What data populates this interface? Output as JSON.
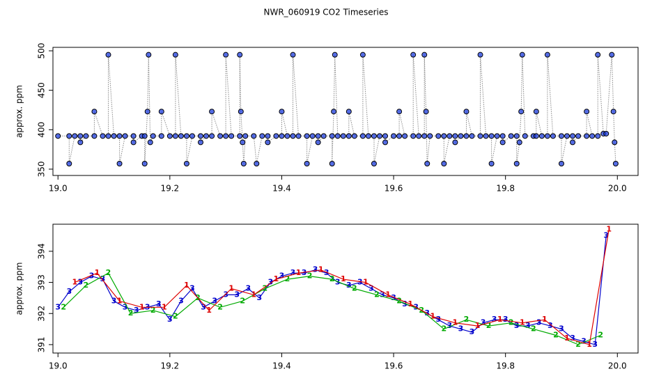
{
  "chart_data": [
    {
      "type": "scatter",
      "title": "NWR_060919  CO2 Timeseries",
      "ylabel": "approx. ppm",
      "xlim": [
        18.991,
        20.037
      ],
      "ylim": [
        342,
        504.4
      ],
      "xticks": [
        {
          "value": 19,
          "label": "19.0"
        },
        19.2,
        19.4,
        19.6,
        19.8,
        {
          "value": 20,
          "label": "20.0"
        }
      ],
      "yticks": [
        350,
        400,
        450,
        500
      ],
      "line_color": "#888888",
      "series": [
        {
          "color": "#1f3fe0",
          "x": [
            19.0,
            19.02,
            19.02,
            19.03,
            19.04,
            19.04,
            19.05,
            19.065,
            19.065,
            19.08,
            19.09,
            19.09,
            19.1,
            19.11,
            19.11,
            19.12,
            19.135,
            19.135,
            19.15,
            19.155,
            19.155,
            19.16,
            19.162,
            19.165,
            19.17,
            19.185,
            19.185,
            19.2,
            19.21,
            19.21,
            19.22,
            19.23,
            19.23,
            19.24,
            19.255,
            19.255,
            19.265,
            19.275,
            19.275,
            19.29,
            19.3,
            19.3,
            19.31,
            19.325,
            19.325,
            19.327,
            19.33,
            19.332,
            19.335,
            19.35,
            19.355,
            19.365,
            19.375,
            19.375,
            19.39,
            19.4,
            19.4,
            19.41,
            19.42,
            19.42,
            19.43,
            19.445,
            19.445,
            19.455,
            19.465,
            19.465,
            19.475,
            19.49,
            19.49,
            19.493,
            19.495,
            19.5,
            19.51,
            19.52,
            19.52,
            19.53,
            19.545,
            19.545,
            19.555,
            19.565,
            19.565,
            19.575,
            19.585,
            19.585,
            19.6,
            19.61,
            19.61,
            19.62,
            19.635,
            19.635,
            19.645,
            19.655,
            19.655,
            19.658,
            19.66,
            19.665,
            19.68,
            19.69,
            19.69,
            19.7,
            19.71,
            19.71,
            19.72,
            19.73,
            19.73,
            19.74,
            19.755,
            19.755,
            19.765,
            19.775,
            19.775,
            19.785,
            19.795,
            19.795,
            19.81,
            19.82,
            19.82,
            19.825,
            19.828,
            19.83,
            19.835,
            19.85,
            19.855,
            19.855,
            19.865,
            19.875,
            19.875,
            19.885,
            19.9,
            19.9,
            19.91,
            19.92,
            19.92,
            19.93,
            19.945,
            19.945,
            19.955,
            19.965,
            19.965,
            19.975,
            19.98,
            19.99,
            19.993,
            19.995,
            19.997
          ],
          "values": [
            392,
            392,
            357,
            392,
            392,
            384,
            392,
            392,
            423,
            392,
            392,
            495,
            392,
            392,
            357,
            392,
            392,
            384,
            392,
            392,
            357,
            423,
            495,
            384,
            392,
            392,
            423,
            392,
            392,
            495,
            392,
            392,
            357,
            392,
            392,
            384,
            392,
            392,
            423,
            392,
            392,
            495,
            392,
            392,
            495,
            423,
            384,
            357,
            392,
            392,
            357,
            392,
            392,
            384,
            392,
            392,
            423,
            392,
            392,
            495,
            392,
            392,
            357,
            392,
            392,
            384,
            392,
            392,
            357,
            423,
            495,
            392,
            392,
            392,
            423,
            392,
            392,
            495,
            392,
            392,
            357,
            392,
            392,
            384,
            392,
            392,
            423,
            392,
            392,
            495,
            392,
            392,
            495,
            423,
            357,
            392,
            392,
            392,
            357,
            392,
            392,
            384,
            392,
            392,
            423,
            392,
            392,
            495,
            392,
            392,
            357,
            392,
            392,
            384,
            392,
            392,
            357,
            384,
            423,
            495,
            392,
            392,
            392,
            423,
            392,
            392,
            495,
            392,
            392,
            357,
            392,
            392,
            384,
            392,
            392,
            423,
            392,
            392,
            495,
            395,
            395,
            495,
            423,
            384,
            357
          ]
        }
      ]
    },
    {
      "type": "line",
      "ylabel": "approx. ppm",
      "xlim": [
        18.991,
        20.037
      ],
      "ylim": [
        390.73,
        394.87
      ],
      "xticks": [
        {
          "value": 19,
          "label": "19.0"
        },
        19.2,
        19.4,
        19.6,
        19.8,
        {
          "value": 20,
          "label": "20.0"
        }
      ],
      "yticks": [
        391,
        392,
        393,
        394
      ],
      "series": [
        {
          "name": "3",
          "color": "#0000cc",
          "x": [
            19.0,
            19.02,
            19.04,
            19.06,
            19.08,
            19.1,
            19.12,
            19.14,
            19.16,
            19.18,
            19.2,
            19.22,
            19.24,
            19.26,
            19.28,
            19.3,
            19.32,
            19.34,
            19.36,
            19.38,
            19.4,
            19.42,
            19.44,
            19.46,
            19.48,
            19.5,
            19.52,
            19.54,
            19.56,
            19.58,
            19.6,
            19.62,
            19.64,
            19.66,
            19.68,
            19.7,
            19.72,
            19.74,
            19.76,
            19.78,
            19.8,
            19.82,
            19.84,
            19.86,
            19.88,
            19.9,
            19.92,
            19.94,
            19.96,
            19.98
          ],
          "values": [
            392.2,
            392.7,
            393.0,
            393.2,
            393.1,
            392.4,
            392.2,
            392.1,
            392.2,
            392.3,
            391.8,
            392.4,
            392.8,
            392.2,
            392.4,
            392.6,
            392.6,
            392.8,
            392.5,
            393.0,
            393.2,
            393.3,
            393.3,
            393.4,
            393.3,
            393.0,
            392.9,
            393.0,
            392.8,
            392.6,
            392.5,
            392.3,
            392.2,
            392.0,
            391.8,
            391.6,
            391.5,
            391.4,
            391.7,
            391.8,
            391.8,
            391.6,
            391.6,
            391.7,
            391.6,
            391.5,
            391.2,
            391.1,
            391.0,
            394.5
          ]
        },
        {
          "name": "2",
          "color": "#00aa00",
          "x": [
            19.01,
            19.05,
            19.09,
            19.13,
            19.17,
            19.21,
            19.25,
            19.29,
            19.33,
            19.37,
            19.41,
            19.45,
            19.49,
            19.53,
            19.57,
            19.61,
            19.65,
            19.69,
            19.73,
            19.77,
            19.81,
            19.85,
            19.89,
            19.93,
            19.97
          ],
          "values": [
            392.2,
            392.9,
            393.3,
            392.0,
            392.1,
            391.9,
            392.5,
            392.2,
            392.4,
            392.8,
            393.1,
            393.2,
            393.1,
            392.8,
            392.6,
            392.4,
            392.1,
            391.5,
            391.8,
            391.6,
            391.7,
            391.5,
            391.3,
            391.0,
            391.3
          ]
        },
        {
          "name": "1",
          "color": "#dd0000",
          "x": [
            19.03,
            19.07,
            19.11,
            19.15,
            19.19,
            19.23,
            19.27,
            19.31,
            19.35,
            19.39,
            19.43,
            19.47,
            19.51,
            19.55,
            19.59,
            19.63,
            19.67,
            19.71,
            19.75,
            19.79,
            19.83,
            19.87,
            19.91,
            19.95,
            19.985
          ],
          "values": [
            393.0,
            393.3,
            392.4,
            392.2,
            392.2,
            392.9,
            392.1,
            392.8,
            392.6,
            393.1,
            393.3,
            393.4,
            393.1,
            393.0,
            392.6,
            392.3,
            391.9,
            391.7,
            391.6,
            391.8,
            391.7,
            391.8,
            391.2,
            391.0,
            394.7
          ]
        }
      ]
    }
  ]
}
